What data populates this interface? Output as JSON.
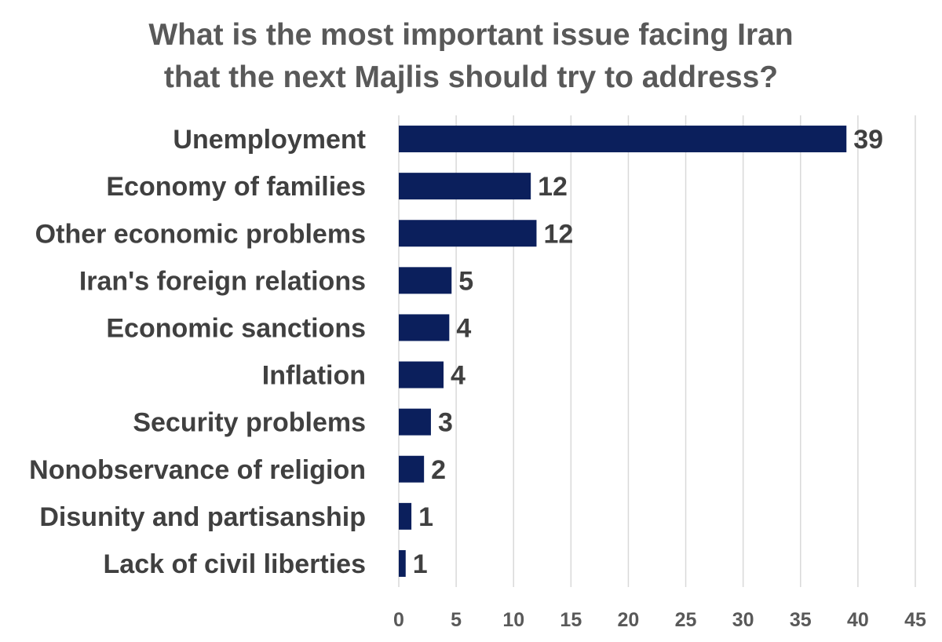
{
  "chart_data": {
    "type": "bar",
    "orientation": "horizontal",
    "title_lines": [
      "What is the most important issue facing Iran",
      "that the next Majlis should try to address?"
    ],
    "categories": [
      "Unemployment",
      "Economy of families",
      "Other economic problems",
      "Iran's foreign relations",
      "Economic sanctions",
      "Inflation",
      "Security problems",
      "Nonobservance of religion",
      "Disunity and partisanship",
      "Lack of civil liberties"
    ],
    "values": [
      39,
      11.5,
      12,
      4.6,
      4.4,
      3.9,
      2.8,
      2.2,
      1.1,
      0.6
    ],
    "data_labels": [
      "39",
      "12",
      "12",
      "5",
      "4",
      "4",
      "3",
      "2",
      "1",
      "1"
    ],
    "xlim": [
      0,
      45
    ],
    "xticks": [
      "0",
      "5",
      "10",
      "15",
      "20",
      "25",
      "30",
      "35",
      "40",
      "45"
    ],
    "gridlines": "vertical",
    "legend": "none",
    "bar_color": "#0b1f5c"
  }
}
